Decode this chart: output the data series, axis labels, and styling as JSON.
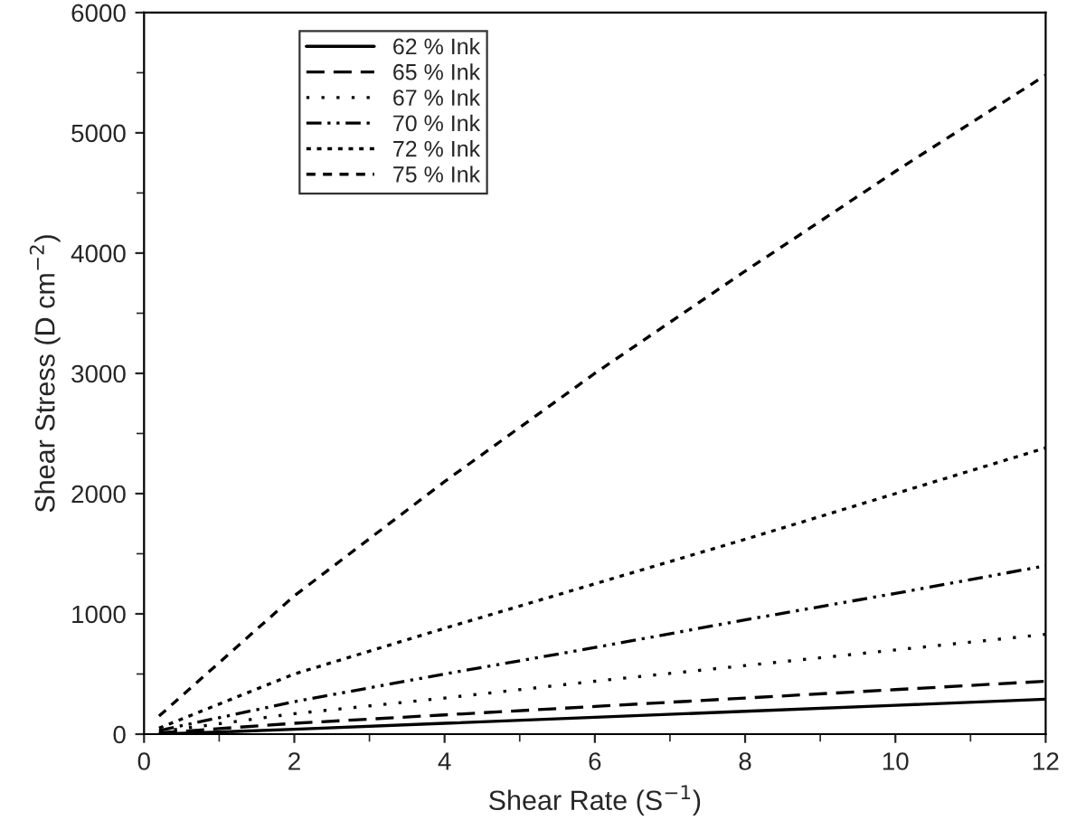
{
  "chart_data": {
    "type": "line",
    "xlabel": "Shear Rate (S$^{−1}$)",
    "ylabel": "Shear Stress (D cm$^{−2}$)",
    "x": [
      0.2,
      2,
      4,
      6,
      8,
      10,
      12
    ],
    "series": [
      {
        "name": "62 % Ink",
        "color": "#000000",
        "line_style": "solid",
        "values": [
          0,
          40,
          90,
          140,
          190,
          240,
          290
        ]
      },
      {
        "name": "65 % Ink",
        "color": "#000000",
        "line_style": "dashed",
        "values": [
          10,
          90,
          160,
          230,
          300,
          370,
          440
        ]
      },
      {
        "name": "67 % Ink",
        "color": "#000000",
        "line_style": "dotted",
        "values": [
          20,
          170,
          300,
          440,
          570,
          700,
          830
        ]
      },
      {
        "name": "70 % Ink",
        "color": "#000000",
        "line_style": "dashdot",
        "values": [
          30,
          270,
          500,
          720,
          950,
          1170,
          1400
        ]
      },
      {
        "name": "72 % Ink",
        "color": "#000000",
        "line_style": "dotted",
        "values": [
          50,
          500,
          880,
          1250,
          1620,
          2000,
          2380
        ]
      },
      {
        "name": "75 % Ink",
        "color": "#000000",
        "line_style": "dashed",
        "values": [
          150,
          1150,
          2100,
          3000,
          3850,
          4680,
          5480
        ]
      }
    ],
    "xlim": [
      0,
      12
    ],
    "xticks": [
      0,
      2,
      4,
      6,
      8,
      10,
      12
    ],
    "ylim": [
      0,
      6000
    ],
    "yticks": [
      0,
      1000,
      2000,
      3000,
      4000,
      5000,
      6000
    ],
    "grid": false,
    "legend": "top left"
  }
}
